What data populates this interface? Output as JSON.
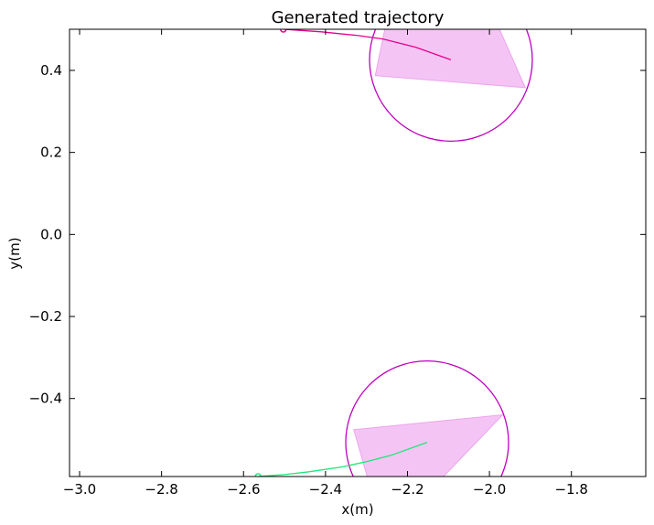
{
  "chart_data": {
    "type": "line",
    "title": "Generated trajectory",
    "xlabel": "x(m)",
    "ylabel": "y(m)",
    "xlim": [
      -3.0246,
      -1.6186
    ],
    "ylim": [
      -0.5902,
      0.5003
    ],
    "xticks": [
      -3.0,
      -2.8,
      -2.6,
      -2.4,
      -2.2,
      -2.0,
      -1.8
    ],
    "xtick_labels": [
      "−3.0",
      "−2.8",
      "−2.6",
      "−2.4",
      "−2.2",
      "−2.0",
      "−1.8"
    ],
    "yticks": [
      -0.4,
      -0.2,
      0.0,
      0.2,
      0.4
    ],
    "ytick_labels": [
      "−0.4",
      "−0.2",
      "0.0",
      "0.2",
      "0.4"
    ],
    "grid": false,
    "colors": {
      "robot_upper": "#e6008c",
      "robot_lower": "#1ee678",
      "circle": "#bf00bf",
      "fov_fill": "#e67ee6"
    },
    "series": [
      {
        "color": "#e6008c",
        "points": [
          [
            -2.5028,
            0.5003
          ],
          [
            -2.41,
            0.494
          ],
          [
            -2.32,
            0.485
          ],
          [
            -2.26,
            0.4766
          ],
          [
            -2.18,
            0.4567
          ],
          [
            -2.094,
            0.4259
          ]
        ]
      },
      {
        "color": "#1ee678",
        "points": [
          [
            -2.5645,
            -0.5902
          ],
          [
            -2.56,
            -0.5898
          ],
          [
            -2.5,
            -0.5855
          ],
          [
            -2.44,
            -0.5786
          ],
          [
            -2.36,
            -0.5667
          ],
          [
            -2.3,
            -0.554
          ],
          [
            -2.24,
            -0.5385
          ],
          [
            -2.152,
            -0.5068
          ]
        ]
      }
    ],
    "start_markers": [
      {
        "x": -2.5028,
        "y": 0.5003,
        "color": "#e6008c"
      },
      {
        "x": -2.5645,
        "y": -0.5902,
        "color": "#1ee678"
      }
    ],
    "circles": [
      {
        "cx": -2.094,
        "cy": 0.4259,
        "r": 0.1987
      },
      {
        "cx": -2.152,
        "cy": -0.5068,
        "r": 0.1987
      }
    ],
    "fov_polygons": [
      [
        [
          -2.2788,
          0.3872
        ],
        [
          -1.9122,
          0.3577
        ],
        [
          -2.0216,
          0.6053
        ],
        [
          -2.2349,
          0.5988
        ]
      ],
      [
        [
          -2.3311,
          -0.4759
        ],
        [
          -1.9674,
          -0.4397
        ],
        [
          -2.1699,
          -0.6504
        ],
        [
          -2.2813,
          -0.6504
        ]
      ]
    ]
  }
}
